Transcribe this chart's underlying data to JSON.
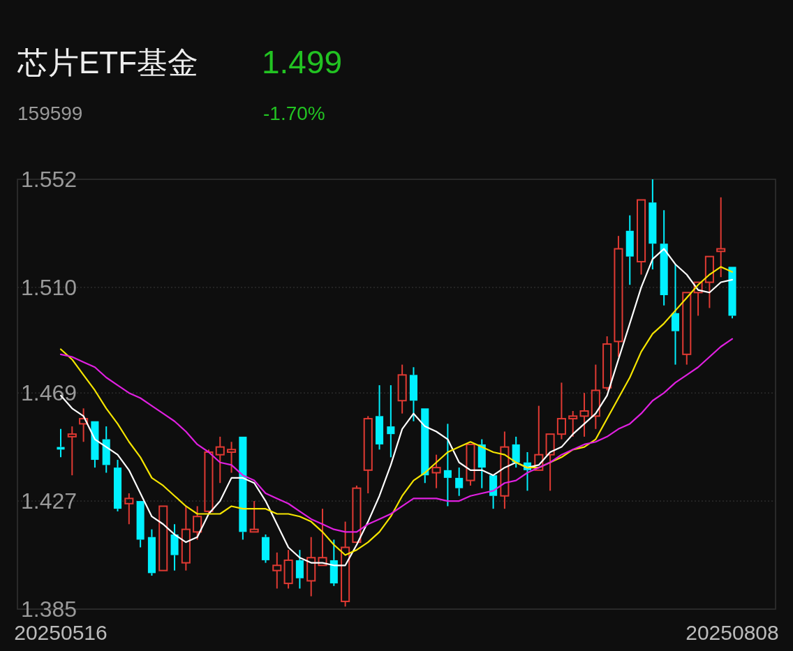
{
  "chart_data": {
    "type": "candlestick",
    "title": "芯片ETF基金",
    "subtitle": "159599",
    "annotations": [
      "1.499",
      "-1.70%"
    ],
    "categories": [
      "20250516",
      null,
      null,
      null,
      null,
      null,
      null,
      null,
      null,
      null,
      null,
      null,
      null,
      null,
      null,
      null,
      null,
      null,
      null,
      null,
      null,
      null,
      null,
      null,
      null,
      null,
      null,
      null,
      null,
      null,
      null,
      null,
      null,
      null,
      null,
      null,
      null,
      null,
      null,
      null,
      null,
      null,
      null,
      null,
      null,
      null,
      null,
      null,
      null,
      null,
      null,
      null,
      null,
      null,
      null,
      null,
      null,
      null,
      null,
      "20250808"
    ],
    "ohlc": [
      [
        1.448,
        1.455,
        1.444,
        1.447
      ],
      [
        1.452,
        1.456,
        1.437,
        1.453
      ],
      [
        1.457,
        1.463,
        1.45,
        1.459
      ],
      [
        1.458,
        1.458,
        1.44,
        1.443
      ],
      [
        1.451,
        1.456,
        1.438,
        1.441
      ],
      [
        1.44,
        1.443,
        1.423,
        1.424
      ],
      [
        1.426,
        1.43,
        1.418,
        1.428
      ],
      [
        1.427,
        1.427,
        1.409,
        1.412
      ],
      [
        1.413,
        1.416,
        1.398,
        1.399
      ],
      [
        1.4,
        1.425,
        1.4,
        1.425
      ],
      [
        1.414,
        1.418,
        1.4,
        1.406
      ],
      [
        1.403,
        1.425,
        1.4,
        1.416
      ],
      [
        1.415,
        1.425,
        1.412,
        1.421
      ],
      [
        1.423,
        1.447,
        1.422,
        1.446
      ],
      [
        1.445,
        1.452,
        1.434,
        1.448
      ],
      [
        1.446,
        1.45,
        1.438,
        1.447
      ],
      [
        1.452,
        1.452,
        1.412,
        1.415
      ],
      [
        1.415,
        1.427,
        1.415,
        1.416
      ],
      [
        1.413,
        1.414,
        1.403,
        1.404
      ],
      [
        1.4,
        1.407,
        1.393,
        1.402
      ],
      [
        1.395,
        1.408,
        1.393,
        1.404
      ],
      [
        1.404,
        1.408,
        1.393,
        1.397
      ],
      [
        1.396,
        1.413,
        1.39,
        1.405
      ],
      [
        1.402,
        1.424,
        1.402,
        1.405
      ],
      [
        1.404,
        1.412,
        1.394,
        1.395
      ],
      [
        1.388,
        1.419,
        1.386,
        1.409
      ],
      [
        1.411,
        1.433,
        1.411,
        1.432
      ],
      [
        1.439,
        1.46,
        1.43,
        1.459
      ],
      [
        1.46,
        1.472,
        1.447,
        1.449
      ],
      [
        1.456,
        1.472,
        1.444,
        1.453
      ],
      [
        1.466,
        1.48,
        1.461,
        1.476
      ],
      [
        1.476,
        1.479,
        1.458,
        1.466
      ],
      [
        1.463,
        1.463,
        1.434,
        1.437
      ],
      [
        1.438,
        1.445,
        1.432,
        1.44
      ],
      [
        1.439,
        1.457,
        1.425,
        1.436
      ],
      [
        1.436,
        1.44,
        1.429,
        1.432
      ],
      [
        1.435,
        1.449,
        1.433,
        1.449
      ],
      [
        1.449,
        1.451,
        1.432,
        1.44
      ],
      [
        1.437,
        1.437,
        1.424,
        1.429
      ],
      [
        1.429,
        1.454,
        1.424,
        1.448
      ],
      [
        1.449,
        1.452,
        1.44,
        1.442
      ],
      [
        1.442,
        1.446,
        1.431,
        1.439
      ],
      [
        1.439,
        1.464,
        1.439,
        1.445
      ],
      [
        1.445,
        1.453,
        1.431,
        1.453
      ],
      [
        1.453,
        1.473,
        1.451,
        1.459
      ],
      [
        1.459,
        1.462,
        1.452,
        1.46
      ],
      [
        1.46,
        1.469,
        1.452,
        1.462
      ],
      [
        1.46,
        1.48,
        1.455,
        1.47
      ],
      [
        1.471,
        1.491,
        1.47,
        1.488
      ],
      [
        1.489,
        1.53,
        1.483,
        1.525
      ],
      [
        1.532,
        1.538,
        1.511,
        1.522
      ],
      [
        1.52,
        1.544,
        1.515,
        1.544
      ],
      [
        1.543,
        1.552,
        1.517,
        1.527
      ],
      [
        1.527,
        1.54,
        1.503,
        1.507
      ],
      [
        1.5,
        1.519,
        1.48,
        1.493
      ],
      [
        1.484,
        1.508,
        1.48,
        1.508
      ],
      [
        1.508,
        1.512,
        1.499,
        1.512
      ],
      [
        1.512,
        1.522,
        1.502,
        1.522
      ],
      [
        1.524,
        1.545,
        1.514,
        1.525
      ],
      [
        1.518,
        1.518,
        1.498,
        1.499
      ]
    ],
    "colors": [
      "#00f0ff",
      "#e03a33",
      "#e03a33",
      "#00f0ff",
      "#00f0ff",
      "#00f0ff",
      "#e03a33",
      "#00f0ff",
      "#00f0ff",
      "#e03a33",
      "#00f0ff",
      "#e03a33",
      "#e03a33",
      "#e03a33",
      "#e03a33",
      "#e03a33",
      "#00f0ff",
      "#e03a33",
      "#00f0ff",
      "#e03a33",
      "#e03a33",
      "#00f0ff",
      "#e03a33",
      "#e03a33",
      "#00f0ff",
      "#e03a33",
      "#e03a33",
      "#e03a33",
      "#00f0ff",
      "#00f0ff",
      "#e03a33",
      "#00f0ff",
      "#00f0ff",
      "#e03a33",
      "#00f0ff",
      "#00f0ff",
      "#e03a33",
      "#00f0ff",
      "#00f0ff",
      "#e03a33",
      "#00f0ff",
      "#00f0ff",
      "#e03a33",
      "#e03a33",
      "#e03a33",
      "#e03a33",
      "#e03a33",
      "#e03a33",
      "#e03a33",
      "#e03a33",
      "#00f0ff",
      "#e03a33",
      "#00f0ff",
      "#00f0ff",
      "#00f0ff",
      "#e03a33",
      "#e03a33",
      "#e03a33",
      "#e03a33",
      "#00f0ff"
    ],
    "series": [
      {
        "type": "line",
        "color": "#ffffff",
        "values": [
          1.468,
          1.463,
          1.46,
          1.451,
          1.448,
          1.445,
          1.439,
          1.43,
          1.421,
          1.418,
          1.414,
          1.411,
          1.413,
          1.422,
          1.427,
          1.436,
          1.436,
          1.434,
          1.427,
          1.418,
          1.409,
          1.405,
          1.403,
          1.403,
          1.402,
          1.402,
          1.41,
          1.419,
          1.429,
          1.441,
          1.455,
          1.461,
          1.456,
          1.454,
          1.451,
          1.442,
          1.439,
          1.439,
          1.437,
          1.44,
          1.442,
          1.44,
          1.441,
          1.446,
          1.448,
          1.453,
          1.457,
          1.461,
          1.468,
          1.482,
          1.496,
          1.51,
          1.521,
          1.525,
          1.519,
          1.515,
          1.509,
          1.508,
          1.512,
          1.513
        ]
      },
      {
        "type": "line",
        "color": "#f5e400",
        "values": [
          1.486,
          1.482,
          1.476,
          1.47,
          1.463,
          1.457,
          1.45,
          1.444,
          1.436,
          1.433,
          1.429,
          1.425,
          1.422,
          1.422,
          1.422,
          1.425,
          1.424,
          1.424,
          1.424,
          1.422,
          1.422,
          1.421,
          1.419,
          1.415,
          1.41,
          1.406,
          1.408,
          1.411,
          1.415,
          1.421,
          1.429,
          1.435,
          1.438,
          1.442,
          1.446,
          1.448,
          1.45,
          1.448,
          1.446,
          1.445,
          1.442,
          1.44,
          1.44,
          1.442,
          1.444,
          1.447,
          1.448,
          1.451,
          1.459,
          1.467,
          1.475,
          1.485,
          1.492,
          1.496,
          1.501,
          1.506,
          1.511,
          1.515,
          1.518,
          1.516
        ]
      },
      {
        "type": "line",
        "color": "#e020e0",
        "values": [
          1.484,
          1.483,
          1.481,
          1.479,
          1.475,
          1.472,
          1.469,
          1.467,
          1.464,
          1.461,
          1.458,
          1.454,
          1.449,
          1.446,
          1.442,
          1.441,
          1.437,
          1.435,
          1.43,
          1.428,
          1.426,
          1.423,
          1.42,
          1.418,
          1.416,
          1.415,
          1.415,
          1.418,
          1.42,
          1.422,
          1.425,
          1.428,
          1.428,
          1.428,
          1.427,
          1.427,
          1.429,
          1.43,
          1.431,
          1.434,
          1.435,
          1.438,
          1.44,
          1.442,
          1.445,
          1.447,
          1.449,
          1.45,
          1.452,
          1.455,
          1.457,
          1.461,
          1.466,
          1.469,
          1.473,
          1.476,
          1.479,
          1.483,
          1.487,
          1.49
        ]
      }
    ],
    "ylim": [
      1.385,
      1.552
    ],
    "yticks": [
      1.385,
      1.427,
      1.469,
      {
        "value": 1.51,
        "label": "1.510"
      },
      1.552
    ],
    "grid": "y"
  }
}
